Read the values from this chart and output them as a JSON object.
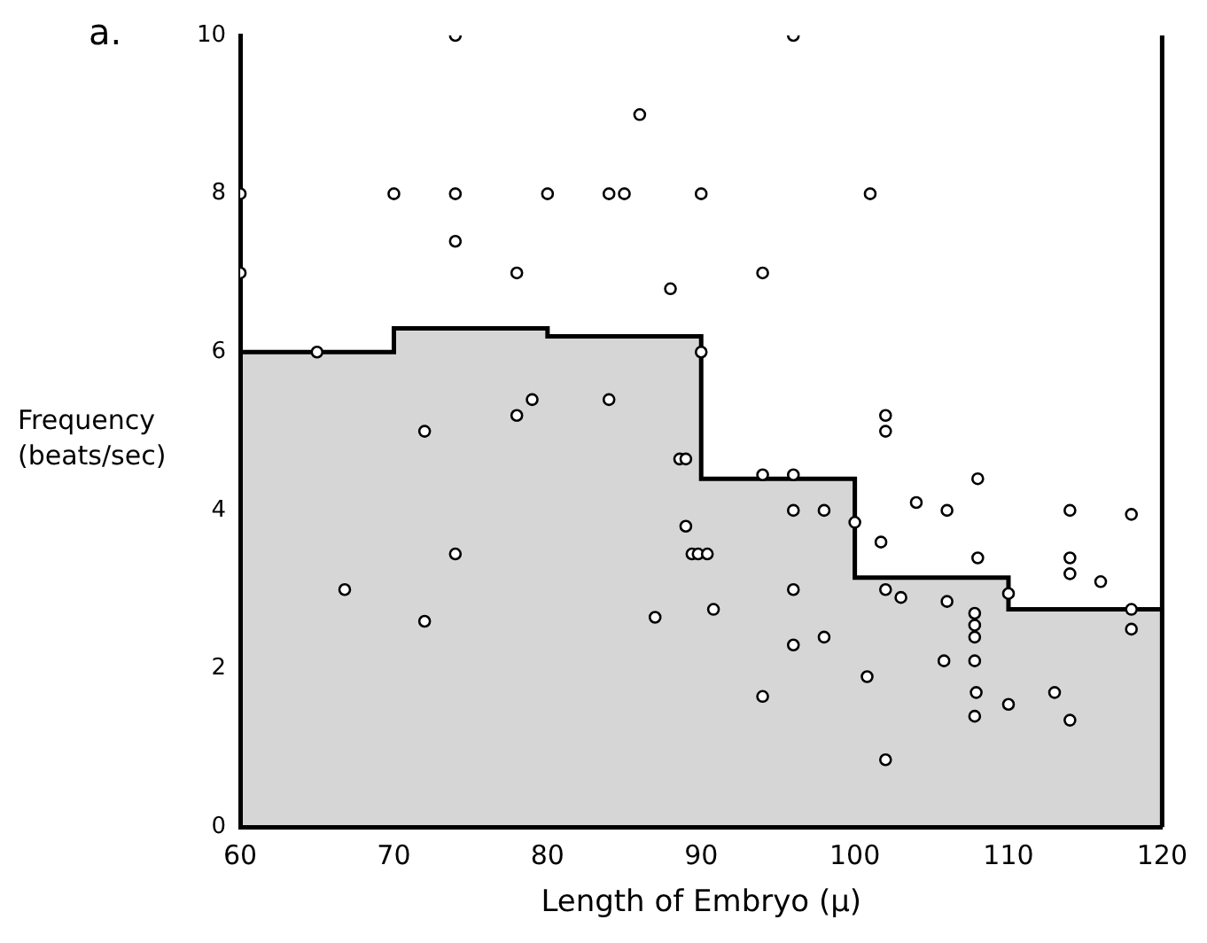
{
  "chart_data": {
    "type": "scatter",
    "title": "a.",
    "xlabel": "Length of Embryo (μ)",
    "ylabel": "Frequency\n(beats/sec)",
    "xlim": [
      60,
      120
    ],
    "xticks": [
      60,
      70,
      80,
      90,
      100,
      110,
      120
    ],
    "ylim": [
      0,
      10
    ],
    "yticks": [
      0,
      2,
      4,
      6,
      8,
      10
    ],
    "grid": false,
    "legend": false,
    "series": [
      {
        "type": "area",
        "color": "#000000",
        "marker": "none",
        "x": [
          60,
          70,
          70,
          80,
          80,
          90,
          90,
          100,
          100,
          110,
          110,
          120
        ],
        "values": [
          6.0,
          6.0,
          6.3,
          6.3,
          6.2,
          6.2,
          4.4,
          4.4,
          3.15,
          3.15,
          2.75,
          2.75
        ]
      },
      {
        "type": "scatter",
        "color": "#000000",
        "marker": "circle",
        "x": [
          74,
          96,
          86,
          70,
          74,
          80,
          84,
          85,
          90,
          101,
          74,
          78,
          88,
          60,
          60,
          65,
          90,
          79,
          78,
          84,
          94,
          102,
          72,
          88.6,
          89,
          89,
          89.4,
          89.8,
          90.4,
          74,
          66.8,
          72,
          87,
          90.8,
          102,
          94,
          96,
          108,
          96,
          98,
          100,
          104,
          106,
          114,
          118,
          101.7,
          108,
          114,
          114,
          116,
          102,
          103,
          110,
          106,
          96,
          107.8,
          107.8,
          107.8,
          118,
          118,
          96,
          98,
          100.8,
          105.8,
          107.8,
          94,
          107.9,
          110,
          113,
          107.8,
          114,
          102
        ],
        "values": [
          10,
          10,
          9,
          8,
          8,
          8,
          8,
          8,
          8,
          8,
          7.4,
          7,
          6.8,
          8,
          7,
          6,
          6,
          5.4,
          5.2,
          5.4,
          7,
          5.2,
          5,
          4.65,
          4.65,
          3.8,
          3.45,
          3.45,
          3.45,
          3.45,
          3,
          2.6,
          2.65,
          2.75,
          5,
          4.45,
          4.45,
          4.4,
          4,
          4,
          3.85,
          4.1,
          4,
          4,
          3.95,
          3.6,
          3.4,
          3.4,
          3.2,
          3.1,
          3,
          2.9,
          2.95,
          2.85,
          3,
          2.7,
          2.55,
          2.4,
          2.75,
          2.5,
          2.3,
          2.4,
          1.9,
          2.1,
          2.1,
          1.65,
          1.7,
          1.55,
          1.7,
          1.4,
          1.35,
          0.85
        ]
      }
    ]
  }
}
